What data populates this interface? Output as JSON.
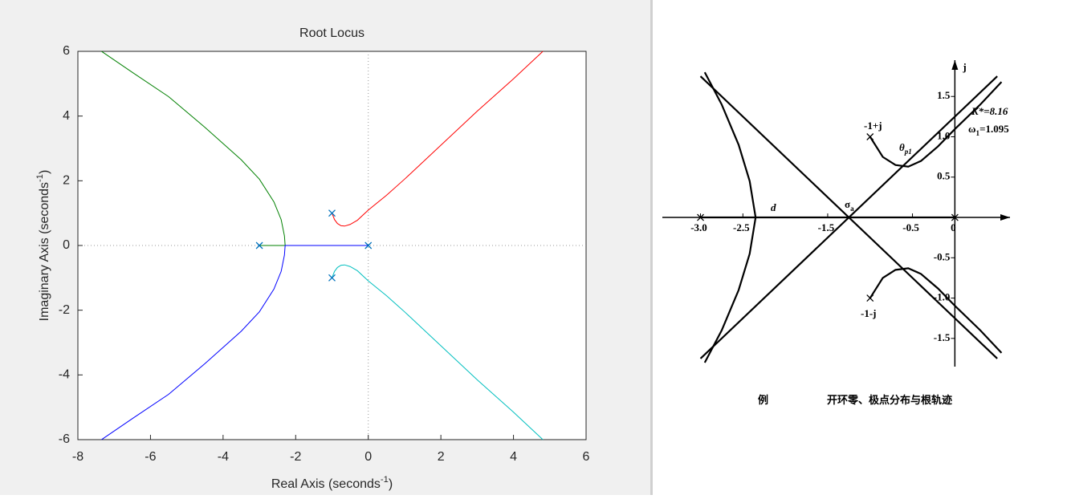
{
  "chart_data": [
    {
      "type": "line",
      "title": "Root Locus",
      "xlabel": {
        "text": "Real Axis (seconds",
        "sup": "-1",
        "tail": ")"
      },
      "ylabel": {
        "text": "Imaginary Axis (seconds",
        "sup": "-1",
        "tail": ")"
      },
      "xlim": [
        -8,
        6
      ],
      "ylim": [
        -6,
        6
      ],
      "xticks": [
        -8,
        -6,
        -4,
        -2,
        0,
        2,
        4,
        6
      ],
      "yticks": [
        -6,
        -4,
        -2,
        0,
        2,
        4,
        6
      ],
      "series": [
        {
          "color": "#ff0000",
          "x": [
            -1,
            -0.93,
            -0.85,
            -0.75,
            -0.65,
            -0.5,
            -0.3,
            0,
            0.5,
            1,
            2,
            3,
            4,
            4.81
          ],
          "values": [
            1,
            0.8,
            0.68,
            0.61,
            0.6,
            0.65,
            0.78,
            1.095,
            1.55,
            2.05,
            3.1,
            4.15,
            5.15,
            6
          ]
        },
        {
          "color": "#00bfbf",
          "x": [
            -1,
            -0.93,
            -0.85,
            -0.75,
            -0.65,
            -0.5,
            -0.3,
            0,
            0.5,
            1,
            2,
            3,
            4,
            4.81
          ],
          "values": [
            -1,
            -0.8,
            -0.68,
            -0.61,
            -0.6,
            -0.65,
            -0.78,
            -1.095,
            -1.55,
            -2.05,
            -3.1,
            -4.15,
            -5.15,
            -6
          ]
        },
        {
          "color": "#008000",
          "x": [
            -3,
            -2.29,
            -2.31,
            -2.4,
            -2.6,
            -3,
            -3.5,
            -4.5,
            -5.5,
            -6.5,
            -7.35
          ],
          "values": [
            0,
            0,
            0.3,
            0.8,
            1.35,
            2.05,
            2.65,
            3.65,
            4.6,
            5.35,
            6
          ]
        },
        {
          "color": "#0000ff",
          "x": [
            0,
            -2.29,
            -2.31,
            -2.4,
            -2.6,
            -3,
            -3.5,
            -4.5,
            -5.5,
            -6.5,
            -7.35
          ],
          "values": [
            0,
            0,
            -0.3,
            -0.8,
            -1.35,
            -2.05,
            -2.65,
            -3.65,
            -4.6,
            -5.35,
            -6
          ]
        }
      ],
      "poles": {
        "color": "#0072bd",
        "x": [
          0,
          -3,
          -1,
          -1
        ],
        "values": [
          0,
          0,
          1,
          -1
        ]
      },
      "zero_lines": true,
      "frame": true
    },
    {
      "type": "line",
      "color": "#000000",
      "xlim": [
        -3.45,
        0.65
      ],
      "ylim": [
        -1.85,
        1.95
      ],
      "xticks": [
        {
          "value": -3,
          "label": "-3.0"
        },
        -2.5,
        -1.5,
        -0.5,
        0
      ],
      "yticks": [
        1.5,
        {
          "value": 1,
          "label": "1.0"
        },
        0.5,
        -0.5,
        {
          "value": -1,
          "label": "-1.0"
        },
        -1.5
      ],
      "yname": "j",
      "series": [
        {
          "x": [
            -1,
            -0.85,
            -0.7,
            -0.55,
            -0.4,
            -0.2,
            0,
            0.3,
            0.55
          ],
          "values": [
            1,
            0.75,
            0.65,
            0.63,
            0.7,
            0.88,
            1.095,
            1.4,
            1.68
          ]
        },
        {
          "x": [
            -1,
            -0.85,
            -0.7,
            -0.55,
            -0.4,
            -0.2,
            0,
            0.3,
            0.55
          ],
          "values": [
            -1,
            -0.75,
            -0.65,
            -0.63,
            -0.7,
            -0.88,
            -1.095,
            -1.4,
            -1.68
          ]
        },
        {
          "x": [
            -2.95,
            -2.75,
            -2.55,
            -2.42,
            -2.35,
            -2.42,
            -2.55,
            -2.75,
            -2.95
          ],
          "values": [
            1.8,
            1.4,
            0.9,
            0.45,
            0,
            -0.45,
            -0.9,
            -1.4,
            -1.8
          ]
        },
        {
          "x": [
            -3,
            0.5
          ],
          "values": [
            1.75,
            -1.75
          ]
        },
        {
          "x": [
            -3,
            0.5
          ],
          "values": [
            -1.75,
            1.75
          ]
        },
        {
          "x": [
            -3,
            0
          ],
          "values": [
            0,
            0
          ]
        }
      ],
      "poles": {
        "x": [
          0,
          -3,
          -1,
          -1
        ],
        "values": [
          0,
          0,
          1,
          -1
        ]
      },
      "annotations": [
        {
          "text": "d"
        },
        {
          "text": "σ",
          "sub": "a"
        },
        {
          "text": "K*=8.16"
        },
        {
          "text": "-1+j"
        },
        {
          "text": "-1-j"
        },
        {
          "text": "ω",
          "sub": "1",
          "tail": "=1.095"
        },
        {
          "text": "θ",
          "sub": "p1"
        }
      ],
      "caption": [
        "例",
        "开环零、极点分布与根轨迹"
      ]
    }
  ]
}
